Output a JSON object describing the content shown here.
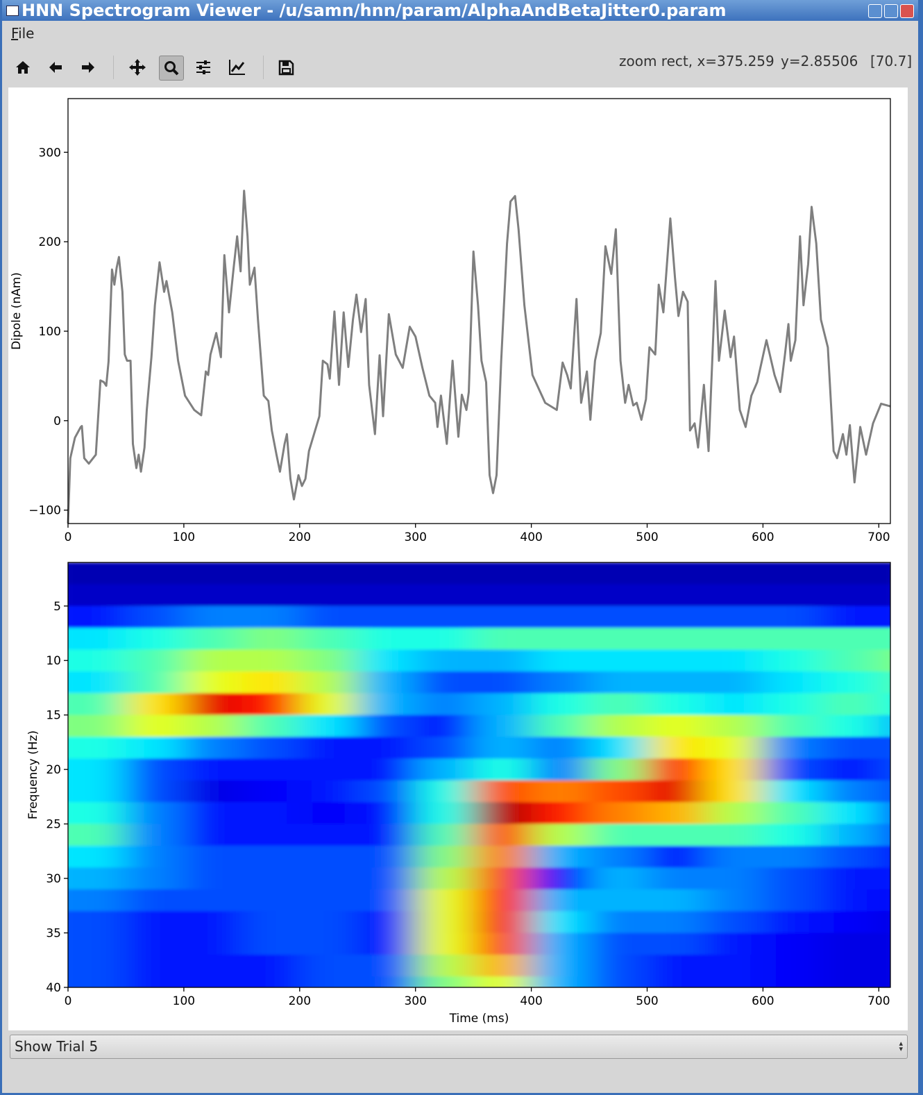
{
  "window": {
    "title": "HNN Spectrogram Viewer - /u/samn/hnn/param/AlphaAndBetaJitter0.param"
  },
  "menu": [
    "File"
  ],
  "status": [
    "zoom rect, x=375.259",
    "y=2.85506",
    "[70.7]"
  ],
  "chart_data": [
    {
      "type": "line",
      "ylabel": "Dipole (nAm)",
      "x": [
        0,
        2,
        6,
        11,
        12,
        14,
        18,
        24,
        28,
        31,
        33,
        35,
        38,
        40,
        42,
        44,
        47,
        49,
        51,
        54,
        56,
        59,
        61,
        63,
        66,
        68,
        72,
        75,
        79,
        83,
        85,
        90,
        95,
        101,
        109,
        115,
        119,
        121,
        123,
        128,
        132,
        135,
        139,
        143,
        146,
        149,
        152,
        155,
        157,
        161,
        164,
        169,
        173,
        176,
        180,
        183,
        187,
        189,
        192,
        195,
        199,
        202,
        205,
        208,
        217,
        220,
        224,
        226,
        230,
        234,
        238,
        242,
        246,
        249,
        253,
        257,
        260,
        265,
        269,
        272,
        277,
        283,
        289,
        295,
        300,
        306,
        312,
        317,
        319,
        322,
        327,
        332,
        337,
        340,
        344,
        346,
        350,
        354,
        357,
        361,
        364,
        367,
        370,
        374,
        379,
        382,
        386,
        389,
        394,
        401,
        412,
        422,
        427,
        431,
        434,
        439,
        443,
        448,
        451,
        455,
        460,
        464,
        469,
        473,
        477,
        481,
        484,
        488,
        491,
        495,
        499,
        502,
        507,
        510,
        514,
        520,
        524,
        527,
        531,
        535,
        537,
        541,
        544,
        549,
        553,
        559,
        562,
        567,
        572,
        575,
        580,
        585,
        590,
        595,
        603,
        610,
        615,
        619,
        622,
        624,
        628,
        632,
        635,
        639,
        642,
        646,
        650,
        656,
        661,
        664,
        669,
        672,
        675,
        679,
        684,
        689,
        695,
        702,
        710
      ],
      "series": [
        {
          "color": "#7f7f7f",
          "values": [
            -115,
            -42,
            -19,
            -7,
            -6,
            -42,
            -48,
            -38,
            45,
            43,
            39,
            66,
            169,
            152,
            171,
            183,
            144,
            74,
            67,
            67,
            -26,
            -53,
            -38,
            -57,
            -30,
            12,
            71,
            129,
            177,
            144,
            156,
            121,
            67,
            28,
            12,
            6,
            55,
            51,
            74,
            98,
            71,
            185,
            121,
            171,
            206,
            167,
            257,
            206,
            152,
            171,
            113,
            28,
            22,
            -11,
            -38,
            -57,
            -26,
            -15,
            -65,
            -88,
            -61,
            -73,
            -65,
            -34,
            5,
            67,
            63,
            47,
            122,
            40,
            121,
            60,
            113,
            141,
            99,
            136,
            40,
            -15,
            73,
            5,
            119,
            74,
            59,
            105,
            94,
            59,
            28,
            20,
            -7,
            28,
            -26,
            67,
            -18,
            29,
            12,
            32,
            189,
            129,
            67,
            43,
            -61,
            -81,
            -61,
            67,
            198,
            245,
            251,
            214,
            129,
            51,
            20,
            12,
            65,
            51,
            36,
            136,
            20,
            55,
            1,
            67,
            98,
            195,
            164,
            214,
            67,
            20,
            40,
            17,
            20,
            1,
            24,
            82,
            74,
            152,
            121,
            226,
            160,
            117,
            144,
            133,
            -11,
            -3,
            -30,
            40,
            -34,
            156,
            67,
            123,
            71,
            94,
            12,
            -7,
            28,
            43,
            90,
            51,
            32,
            74,
            108,
            67,
            90,
            206,
            129,
            175,
            239,
            198,
            113,
            82,
            -34,
            -42,
            -15,
            -38,
            -5,
            -69,
            -7,
            -38,
            -3,
            19,
            16
          ]
        }
      ],
      "xlim": [
        0,
        710
      ],
      "ylim": [
        -115,
        360
      ],
      "xticks": [
        0,
        100,
        200,
        300,
        400,
        500,
        600,
        700
      ],
      "yticks": [
        {
          "value": -100,
          "label": "−100"
        },
        0,
        100,
        200,
        300
      ]
    },
    {
      "type": "heatmap",
      "xlabel": "Time (ms)",
      "ylabel": "Frequency (Hz)",
      "x": [
        0,
        50,
        100,
        150,
        200,
        250,
        300,
        350,
        400,
        450,
        500,
        550,
        600,
        650,
        700
      ],
      "y": [
        2,
        4,
        6,
        8,
        10,
        12,
        14,
        16,
        18,
        20,
        22,
        24,
        26,
        28,
        30,
        32,
        34,
        36,
        38,
        40
      ],
      "values": [
        [
          0.05,
          0.05,
          0.05,
          0.05,
          0.05,
          0.05,
          0.05,
          0.05,
          0.05,
          0.05,
          0.05,
          0.05,
          0.05,
          0.05,
          0.05
        ],
        [
          0.07,
          0.07,
          0.07,
          0.07,
          0.07,
          0.07,
          0.07,
          0.07,
          0.07,
          0.07,
          0.07,
          0.07,
          0.07,
          0.07,
          0.07
        ],
        [
          0.15,
          0.2,
          0.25,
          0.25,
          0.2,
          0.2,
          0.2,
          0.2,
          0.2,
          0.2,
          0.2,
          0.2,
          0.2,
          0.15,
          0.15
        ],
        [
          0.35,
          0.4,
          0.45,
          0.5,
          0.45,
          0.4,
          0.4,
          0.45,
          0.45,
          0.45,
          0.45,
          0.45,
          0.45,
          0.45,
          0.45
        ],
        [
          0.4,
          0.45,
          0.55,
          0.55,
          0.5,
          0.35,
          0.3,
          0.3,
          0.35,
          0.35,
          0.35,
          0.35,
          0.4,
          0.45,
          0.5
        ],
        [
          0.35,
          0.45,
          0.6,
          0.65,
          0.55,
          0.3,
          0.2,
          0.2,
          0.25,
          0.3,
          0.3,
          0.3,
          0.35,
          0.4,
          0.45
        ],
        [
          0.45,
          0.65,
          0.9,
          0.85,
          0.6,
          0.3,
          0.25,
          0.3,
          0.4,
          0.45,
          0.4,
          0.35,
          0.4,
          0.45,
          0.4
        ],
        [
          0.5,
          0.6,
          0.55,
          0.45,
          0.35,
          0.2,
          0.15,
          0.3,
          0.45,
          0.55,
          0.6,
          0.55,
          0.45,
          0.4,
          0.3
        ],
        [
          0.4,
          0.35,
          0.25,
          0.2,
          0.15,
          0.15,
          0.2,
          0.3,
          0.25,
          0.35,
          0.65,
          0.6,
          0.25,
          0.2,
          0.2
        ],
        [
          0.35,
          0.2,
          0.15,
          0.15,
          0.15,
          0.15,
          0.3,
          0.4,
          0.25,
          0.5,
          0.85,
          0.65,
          0.2,
          0.15,
          0.2
        ],
        [
          0.35,
          0.2,
          0.1,
          0.12,
          0.15,
          0.2,
          0.4,
          0.8,
          0.75,
          0.8,
          0.9,
          0.65,
          0.35,
          0.25,
          0.2
        ],
        [
          0.4,
          0.25,
          0.15,
          0.15,
          0.12,
          0.15,
          0.4,
          0.95,
          0.85,
          0.75,
          0.7,
          0.55,
          0.45,
          0.35,
          0.2
        ],
        [
          0.45,
          0.25,
          0.15,
          0.15,
          0.15,
          0.15,
          0.45,
          0.8,
          0.55,
          0.45,
          0.45,
          0.45,
          0.4,
          0.3,
          0.2
        ],
        [
          0.35,
          0.25,
          0.2,
          0.2,
          0.2,
          0.2,
          0.5,
          0.75,
          0.3,
          0.25,
          0.15,
          0.25,
          0.25,
          0.2,
          0.15
        ],
        [
          0.3,
          0.25,
          0.2,
          0.2,
          0.2,
          0.2,
          0.55,
          0.8,
          0.15,
          0.3,
          0.25,
          0.25,
          0.2,
          0.15,
          0.15
        ],
        [
          0.25,
          0.2,
          0.2,
          0.2,
          0.2,
          0.2,
          0.6,
          0.85,
          0.3,
          0.3,
          0.3,
          0.25,
          0.2,
          0.15,
          0.12
        ],
        [
          0.2,
          0.15,
          0.15,
          0.2,
          0.2,
          0.15,
          0.6,
          0.88,
          0.35,
          0.25,
          0.25,
          0.2,
          0.15,
          0.12,
          0.1
        ],
        [
          0.2,
          0.15,
          0.15,
          0.2,
          0.2,
          0.15,
          0.6,
          0.8,
          0.3,
          0.2,
          0.2,
          0.15,
          0.12,
          0.1,
          0.1
        ],
        [
          0.2,
          0.15,
          0.15,
          0.15,
          0.2,
          0.2,
          0.55,
          0.7,
          0.3,
          0.2,
          0.15,
          0.15,
          0.12,
          0.1,
          0.1
        ],
        [
          0.2,
          0.15,
          0.15,
          0.15,
          0.2,
          0.2,
          0.5,
          0.6,
          0.3,
          0.2,
          0.15,
          0.15,
          0.12,
          0.1,
          0.1
        ]
      ],
      "colormap": "jet",
      "clim": [
        0,
        1
      ],
      "xlim": [
        0,
        710
      ],
      "ylim": [
        40,
        1
      ],
      "xticks": [
        0,
        100,
        200,
        300,
        400,
        500,
        600,
        700
      ],
      "yticks": [
        5,
        10,
        15,
        20,
        25,
        30,
        35,
        40
      ]
    }
  ],
  "combo": {
    "value": "Show Trial 5"
  }
}
